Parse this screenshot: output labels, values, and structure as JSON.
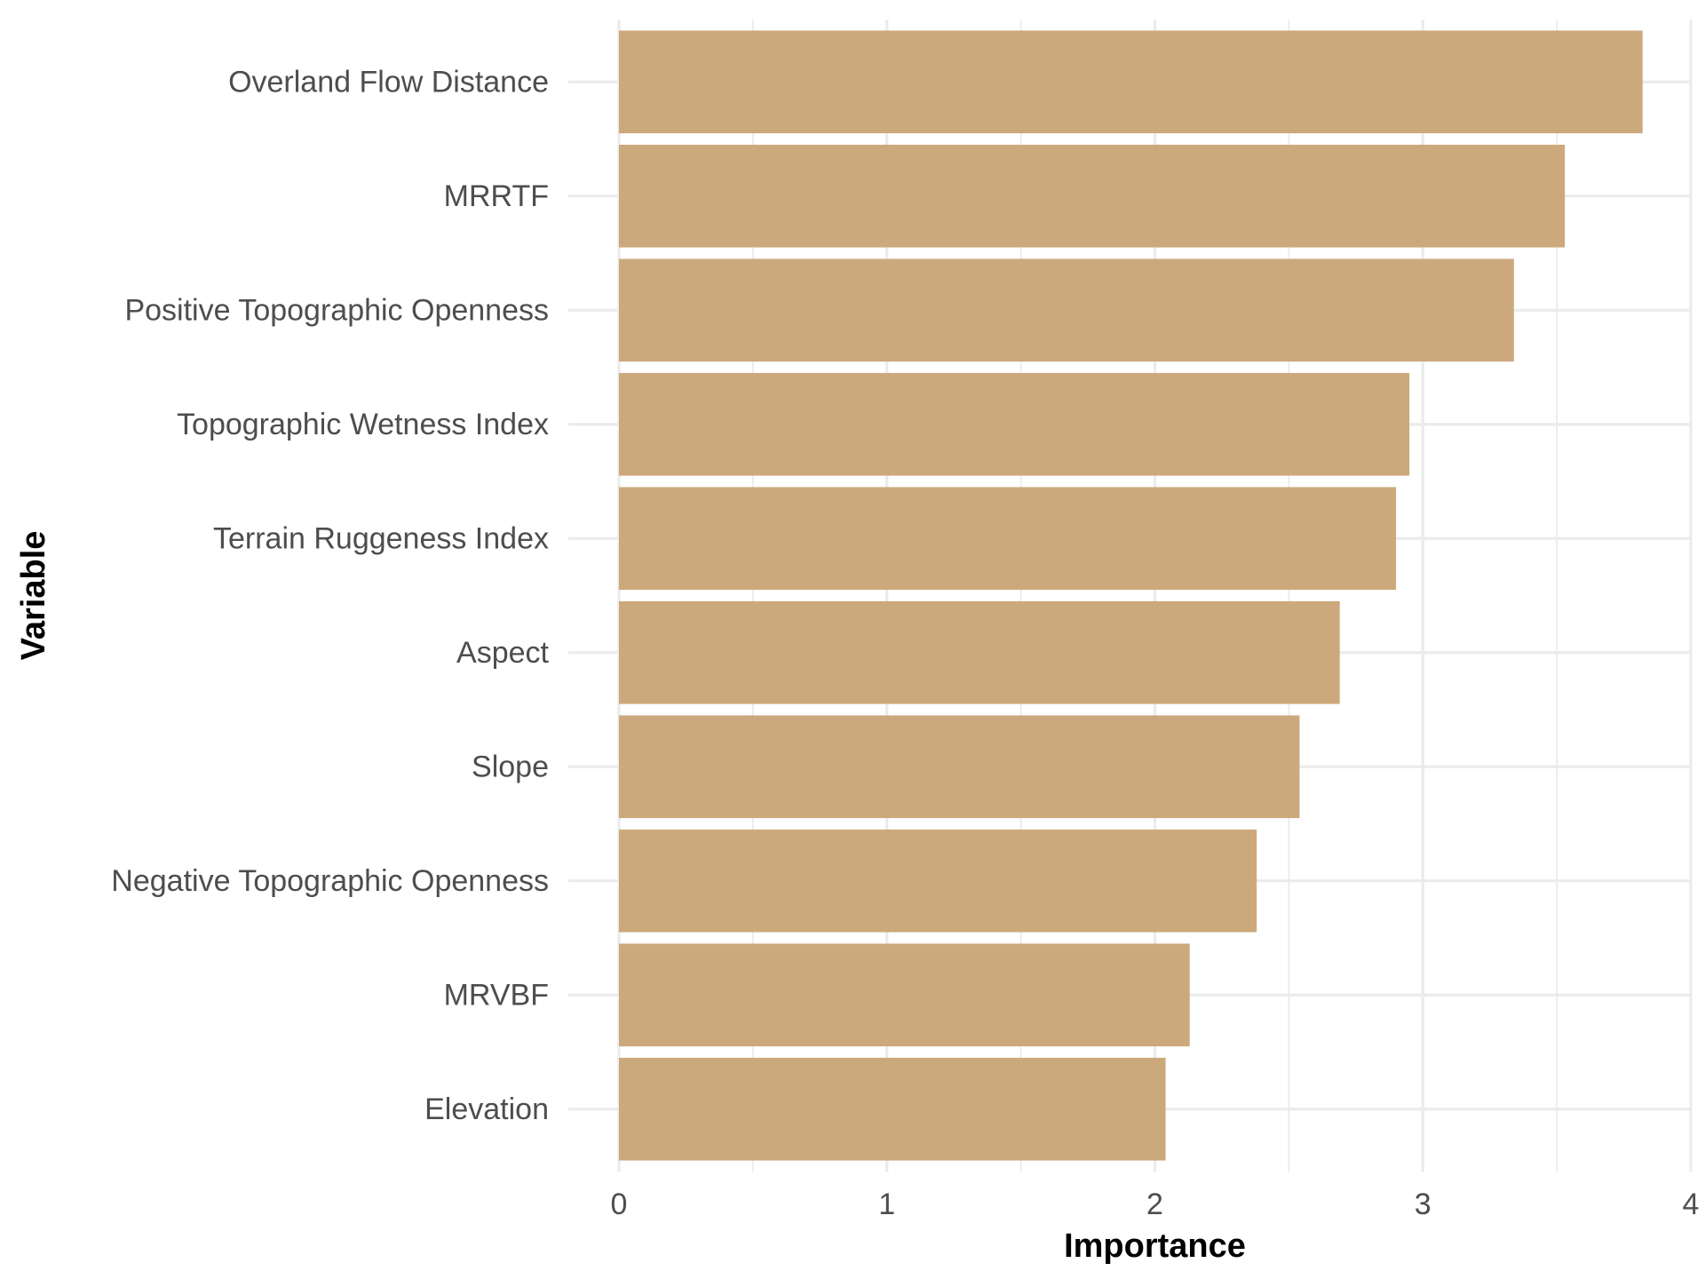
{
  "chart_data": {
    "type": "bar",
    "orientation": "horizontal",
    "categories": [
      "Overland Flow Distance",
      "MRRTF",
      "Positive Topographic Openness",
      "Topographic Wetness Index",
      "Terrain Ruggeness Index",
      "Aspect",
      "Slope",
      "Negative Topographic Openness",
      "MRVBF",
      "Elevation"
    ],
    "values": [
      3.82,
      3.53,
      3.34,
      2.95,
      2.9,
      2.69,
      2.54,
      2.38,
      2.13,
      2.04
    ],
    "xlabel": "Importance",
    "ylabel": "Variable",
    "xlim": [
      0,
      4
    ],
    "xticks": [
      "0",
      "1",
      "2",
      "3",
      "4"
    ],
    "grid": true,
    "legend": "none",
    "colors": {
      "bar": "#CCA97C",
      "grid": "#EBEBEB",
      "tick_text": "#4D4D4D",
      "axis_title": "#000000",
      "background": "#FFFFFF"
    }
  }
}
